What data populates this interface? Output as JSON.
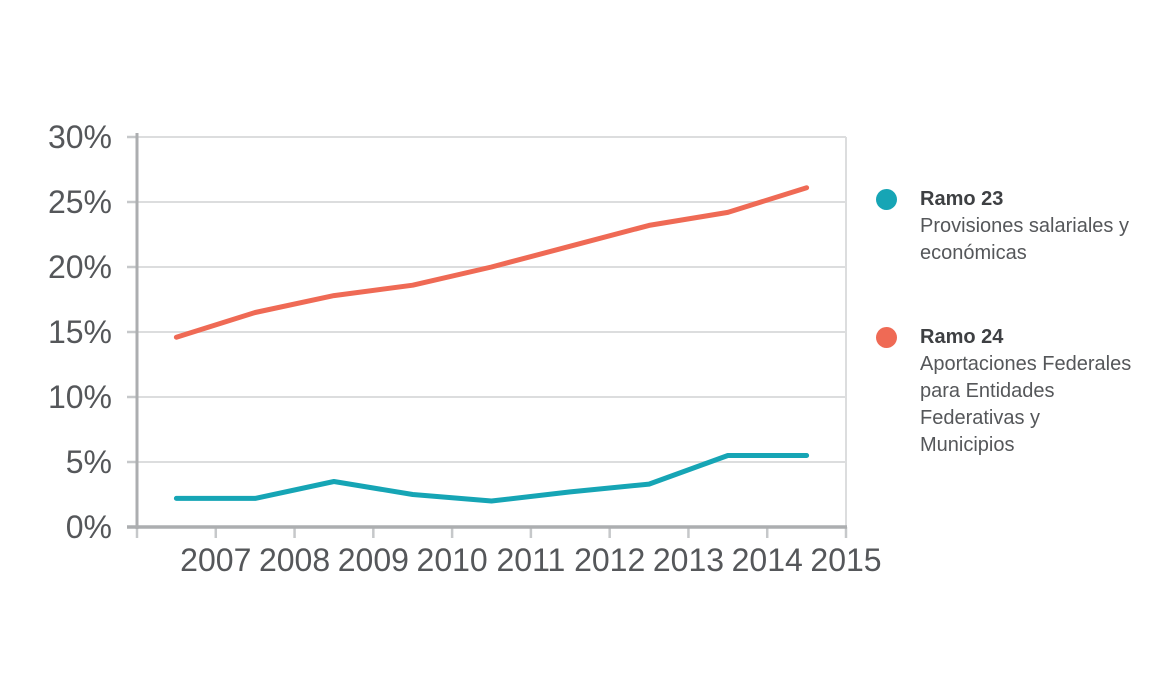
{
  "chart_data": {
    "type": "line",
    "x": [
      "2007",
      "2008",
      "2009",
      "2010",
      "2011",
      "2012",
      "2013",
      "2014",
      "2015"
    ],
    "series": [
      {
        "name": "Ramo 23",
        "description": "Provisiones salariales y económicas",
        "color": "#16A5B5",
        "values": [
          2.2,
          2.2,
          3.5,
          2.5,
          2.0,
          2.7,
          3.3,
          5.5,
          5.5
        ]
      },
      {
        "name": "Ramo 24",
        "description": "Aportaciones Federales para Entidades Federativas y Municipios",
        "color": "#EF6A55",
        "values": [
          14.6,
          16.5,
          17.8,
          18.6,
          20.0,
          21.6,
          23.2,
          24.2,
          26.1
        ]
      }
    ],
    "title": "",
    "xlabel": "",
    "ylabel": "",
    "ylim": [
      0,
      30
    ],
    "ytick_step": 5,
    "yticklabels": [
      "0%",
      "5%",
      "10%",
      "15%",
      "20%",
      "25%",
      "30%"
    ],
    "grid": true,
    "legend_position": "right",
    "colors": {
      "grid": "#DCDDDE",
      "axis": "#ACAEB0",
      "tick": "#C6C8CA",
      "label": "#55575A"
    }
  },
  "legend": {
    "items": [
      {
        "title": "Ramo 23",
        "description": "Provisiones salariales y económicas"
      },
      {
        "title": "Ramo 24",
        "description": "Aportaciones Federales para Entidades Federativas y Municipios"
      }
    ]
  }
}
